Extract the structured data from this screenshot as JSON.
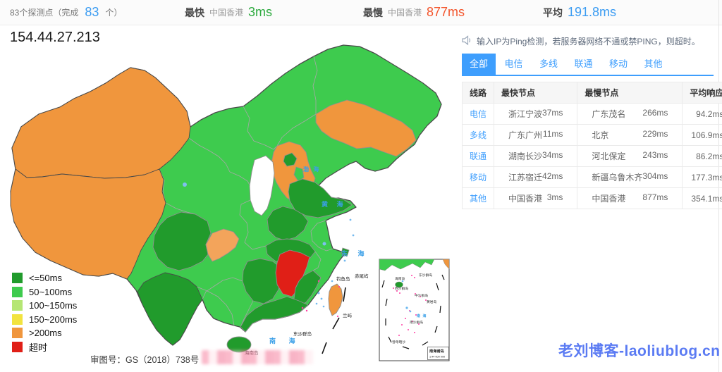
{
  "topbar": {
    "probes_prefix": "83个探测点（完成",
    "probes_count": "83",
    "probes_suffix": "个）",
    "fastest_label": "最快",
    "fastest_node": "中国香港",
    "fastest_value": "3ms",
    "slowest_label": "最慢",
    "slowest_node": "中国香港",
    "slowest_value": "877ms",
    "average_label": "平均",
    "average_value": "191.8ms"
  },
  "ip_title": "154.44.27.213",
  "tip": {
    "icon": "speaker-icon",
    "text": "输入IP为Ping检测，若服务器网络不通或禁PING，则超时。"
  },
  "tabs": [
    {
      "id": "all",
      "label": "全部",
      "active": true
    },
    {
      "id": "telecom",
      "label": "电信",
      "active": false
    },
    {
      "id": "multiline",
      "label": "多线",
      "active": false
    },
    {
      "id": "unicom",
      "label": "联通",
      "active": false
    },
    {
      "id": "mobile",
      "label": "移动",
      "active": false
    },
    {
      "id": "other",
      "label": "其他",
      "active": false
    }
  ],
  "table": {
    "headers": [
      "线路",
      "最快节点",
      "最慢节点",
      "平均响应"
    ],
    "rows": [
      {
        "line": "电信",
        "fast_node": "浙江宁波",
        "fast_ms": "37ms",
        "slow_node": "广东茂名",
        "slow_ms": "266ms",
        "avg": "94.2ms"
      },
      {
        "line": "多线",
        "fast_node": "广东广州",
        "fast_ms": "11ms",
        "slow_node": "北京",
        "slow_ms": "229ms",
        "avg": "106.9ms"
      },
      {
        "line": "联通",
        "fast_node": "湖南长沙",
        "fast_ms": "34ms",
        "slow_node": "河北保定",
        "slow_ms": "243ms",
        "avg": "86.2ms"
      },
      {
        "line": "移动",
        "fast_node": "江苏宿迁",
        "fast_ms": "42ms",
        "slow_node": "新疆乌鲁木齐",
        "slow_ms": "304ms",
        "avg": "177.3ms"
      },
      {
        "line": "其他",
        "fast_node": "中国香港",
        "fast_ms": "3ms",
        "slow_node": "中国香港",
        "slow_ms": "877ms",
        "avg": "354.1ms"
      }
    ]
  },
  "legend": [
    {
      "label": "<=50ms",
      "color": "#219b2c"
    },
    {
      "label": "50~100ms",
      "color": "#3ecb4e"
    },
    {
      "label": "100~150ms",
      "color": "#b5e674"
    },
    {
      "label": "150~200ms",
      "color": "#f2e33f"
    },
    {
      "label": ">200ms",
      "color": "#f0963d"
    },
    {
      "label": "超时",
      "color": "#e01f17"
    }
  ],
  "map": {
    "review_number": "审图号：GS（2018）738号",
    "base_status": "50~100ms",
    "provinces": [
      {
        "id": "xinjiang",
        "status": ">200ms"
      },
      {
        "id": "xizang",
        "status": ">200ms"
      },
      {
        "id": "jilin",
        "status": ">200ms"
      },
      {
        "id": "hebei",
        "status": ">200ms"
      },
      {
        "id": "taiwan",
        "status": ">200ms"
      },
      {
        "id": "chongqing",
        "status": ">200ms",
        "color": "#f3a45b"
      },
      {
        "id": "shanxi",
        "status": "no-data",
        "color": "#ffffff"
      },
      {
        "id": "jiangxi",
        "status": "超时"
      },
      {
        "id": "shandong",
        "status": "<=50ms"
      },
      {
        "id": "henan",
        "status": "<=50ms"
      },
      {
        "id": "hubei",
        "status": "<=50ms"
      },
      {
        "id": "hunan",
        "status": "<=50ms"
      },
      {
        "id": "sichuan",
        "status": "<=50ms"
      },
      {
        "id": "yunnan",
        "status": "<=50ms"
      },
      {
        "id": "guangdong",
        "status": "<=50ms"
      },
      {
        "id": "fujian",
        "status": "<=50ms"
      },
      {
        "id": "hainan",
        "status": "<=50ms"
      },
      {
        "id": "beijing",
        "status": "<=50ms"
      },
      {
        "id": "shanghai",
        "status": "<=50ms"
      },
      {
        "id": "tianjin",
        "status": "50~100ms"
      }
    ],
    "sea_labels": {
      "bohai": "渤 海",
      "huanghai": "黄 海",
      "donghai": "东 海",
      "nanhai": "南 海"
    },
    "island_labels": {
      "diaoyudao": "钓鱼岛",
      "chiweiyu": "赤尾屿",
      "lanyu": "兰屿",
      "dongsha": "东沙群岛",
      "hainandao": "海南岛"
    },
    "inset": {
      "title": "南海诸岛",
      "scale": "1:44 000 000",
      "labels": {
        "dongsha": "东沙群岛",
        "hainandao": "海南岛",
        "xisha": "西沙群岛",
        "zhongsha": "中沙群岛",
        "huangyan": "黄岩岛",
        "nanhai": "南 海",
        "nansha": "南沙群岛",
        "zengmu": "曾母暗沙"
      }
    }
  },
  "watermark": "老刘博客-laoliublog.cn"
}
